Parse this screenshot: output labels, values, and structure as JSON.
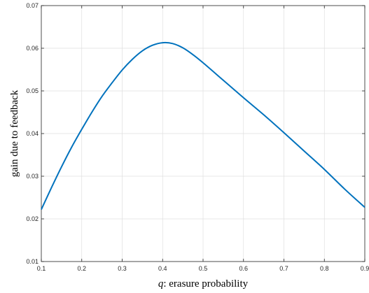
{
  "chart_data": {
    "type": "line",
    "title": "",
    "xlabel_var": "q",
    "xlabel_rest": ": erasure probability",
    "ylabel": "gain due to feedback",
    "xlim": [
      0.1,
      0.9
    ],
    "ylim": [
      0.01,
      0.07
    ],
    "xticks": [
      "0.1",
      "0.2",
      "0.3",
      "0.4",
      "0.5",
      "0.6",
      "0.7",
      "0.8",
      "0.9"
    ],
    "yticks": [
      "0.01",
      "0.02",
      "0.03",
      "0.04",
      "0.05",
      "0.06",
      "0.07"
    ],
    "grid": true,
    "line_color": "#0072BD",
    "series": [
      {
        "x": [
          0.1,
          0.125,
          0.15,
          0.175,
          0.2,
          0.225,
          0.25,
          0.275,
          0.3,
          0.325,
          0.35,
          0.375,
          0.4,
          0.425,
          0.45,
          0.475,
          0.5,
          0.55,
          0.6,
          0.65,
          0.7,
          0.75,
          0.8,
          0.85,
          0.9
        ],
        "values": [
          0.0222,
          0.0273,
          0.0322,
          0.0368,
          0.041,
          0.045,
          0.0487,
          0.0519,
          0.0549,
          0.0574,
          0.0594,
          0.0607,
          0.0613,
          0.0611,
          0.0601,
          0.0585,
          0.0566,
          0.0525,
          0.0484,
          0.0444,
          0.0402,
          0.0359,
          0.0316,
          0.027,
          0.0227
        ]
      }
    ]
  }
}
